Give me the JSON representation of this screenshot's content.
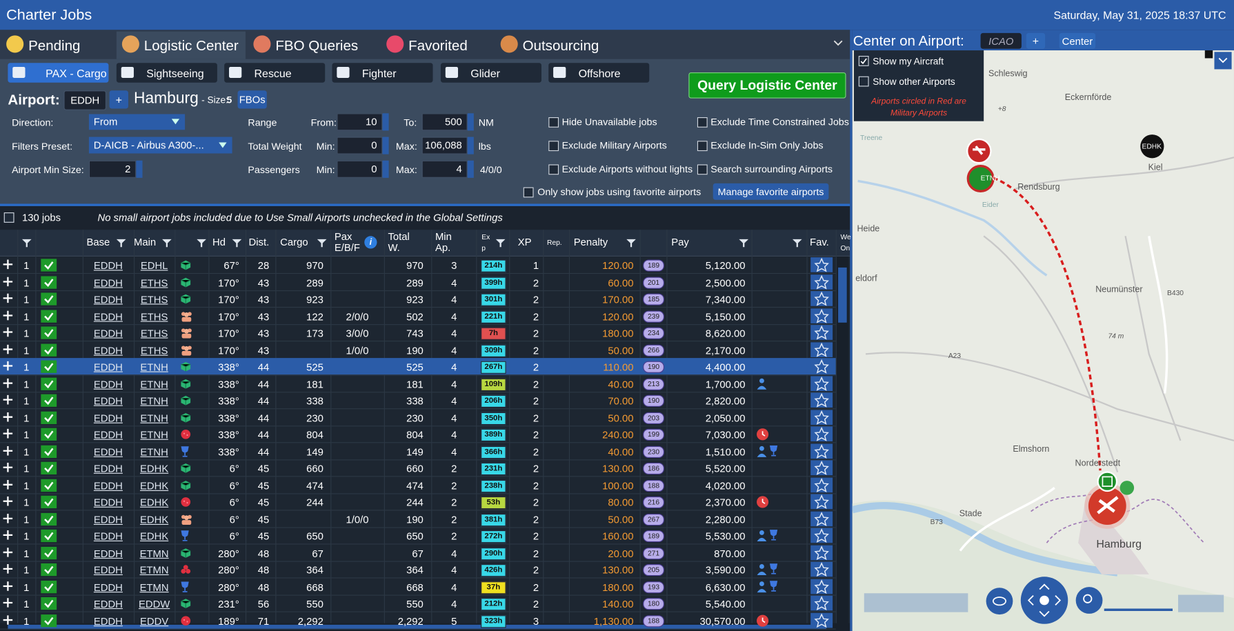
{
  "header": {
    "title": "Charter Jobs",
    "date": "Saturday, May 31, 2025 18:37 UTC"
  },
  "tabs": [
    "Pending",
    "Logistic Center",
    "FBO Queries",
    "Favorited",
    "Outsourcing"
  ],
  "categories": [
    "PAX - Cargo",
    "Sightseeing",
    "Rescue",
    "Fighter",
    "Glider",
    "Offshore"
  ],
  "query_button": "Query Logistic Center",
  "airport": {
    "label": "Airport:",
    "icao": "EDDH",
    "plus": "+",
    "name": "Hamburg",
    "size_label": "- Size:",
    "size": "5",
    "fbos": "FBOs"
  },
  "filters": {
    "direction_label": "Direction:",
    "direction": "From",
    "preset_label": "Filters Preset:",
    "preset": "D-AICB - Airbus A300-...",
    "min_size_label": "Airport Min Size:",
    "min_size": "2",
    "range_label": "Range",
    "from_label": "From:",
    "from": "10",
    "to_label": "To:",
    "to": "500",
    "range_unit": "NM",
    "weight_label": "Total Weight",
    "min_label": "Min:",
    "max_label": "Max:",
    "weight_min": "0",
    "weight_max": "106,088",
    "weight_unit": "lbs",
    "pax_label": "Passengers",
    "pax_min": "0",
    "pax_max": "4",
    "pax_summary": "4/0/0"
  },
  "checkboxes": [
    "Hide Unavailable jobs",
    "Exclude Military Airports",
    "Exclude Airports without lights",
    "Exclude Time Constrained Jobs",
    "Exclude In-Sim Only Jobs",
    "Search surrounding Airports"
  ],
  "favorites_checkbox": "Only show jobs using favorite airports",
  "manage_button": "Manage favorite airports",
  "jobs_count": "130 jobs",
  "note": "No small airport jobs included due to Use Small Airports unchecked in the Global Settings",
  "table": {
    "headers": [
      "Base",
      "Main",
      "Hd",
      "Dist.",
      "Cargo",
      "Pax\nE/B/F",
      "Total\nW.",
      "Min\nAp.",
      "Ex\np",
      "XP",
      "Rep.",
      "Penalty",
      "Pay",
      "Fav.",
      "We\nOn"
    ],
    "rows": [
      [
        "1",
        "EDDH",
        "EDHL",
        "67°",
        "28",
        "970",
        null,
        "970",
        "3",
        "214h",
        "1",
        "120.00",
        "189",
        "5,120.00"
      ],
      [
        "1",
        "EDDH",
        "ETHS",
        "170°",
        "43",
        "289",
        null,
        "289",
        "4",
        "399h",
        "2",
        "60.00",
        "201",
        "2,500.00"
      ],
      [
        "1",
        "EDDH",
        "ETHS",
        "170°",
        "43",
        "923",
        null,
        "923",
        "4",
        "301h",
        "2",
        "170.00",
        "185",
        "7,340.00"
      ],
      [
        "1",
        "EDDH",
        "ETHS",
        "170°",
        "43",
        "122",
        "2/0/0",
        "502",
        "4",
        "221h",
        "2",
        "120.00",
        "239",
        "5,150.00"
      ],
      [
        "1",
        "EDDH",
        "ETHS",
        "170°",
        "43",
        "173",
        "3/0/0",
        "743",
        "4",
        "7h",
        "2",
        "180.00",
        "234",
        "8,620.00"
      ],
      [
        "1",
        "EDDH",
        "ETHS",
        "170°",
        "43",
        null,
        "1/0/0",
        "190",
        "4",
        "309h",
        "2",
        "50.00",
        "266",
        "2,170.00"
      ],
      [
        "1",
        "EDDH",
        "ETNH",
        "338°",
        "44",
        "525",
        null,
        "525",
        "4",
        "267h",
        "2",
        "110.00",
        "190",
        "4,400.00"
      ],
      [
        "1",
        "EDDH",
        "ETNH",
        "338°",
        "44",
        "181",
        null,
        "181",
        "4",
        "109h",
        "2",
        "40.00",
        "213",
        "1,700.00"
      ],
      [
        "1",
        "EDDH",
        "ETNH",
        "338°",
        "44",
        "338",
        null,
        "338",
        "4",
        "206h",
        "2",
        "70.00",
        "190",
        "2,820.00"
      ],
      [
        "1",
        "EDDH",
        "ETNH",
        "338°",
        "44",
        "230",
        null,
        "230",
        "4",
        "350h",
        "2",
        "50.00",
        "203",
        "2,050.00"
      ],
      [
        "1",
        "EDDH",
        "ETNH",
        "338°",
        "44",
        "804",
        null,
        "804",
        "4",
        "389h",
        "2",
        "240.00",
        "199",
        "7,030.00"
      ],
      [
        "1",
        "EDDH",
        "ETNH",
        "338°",
        "44",
        "149",
        null,
        "149",
        "4",
        "366h",
        "2",
        "40.00",
        "230",
        "1,510.00"
      ],
      [
        "1",
        "EDDH",
        "EDHK",
        "6°",
        "45",
        "660",
        null,
        "660",
        "2",
        "231h",
        "2",
        "130.00",
        "186",
        "5,520.00"
      ],
      [
        "1",
        "EDDH",
        "EDHK",
        "6°",
        "45",
        "474",
        null,
        "474",
        "2",
        "238h",
        "2",
        "100.00",
        "188",
        "4,020.00"
      ],
      [
        "1",
        "EDDH",
        "EDHK",
        "6°",
        "45",
        "244",
        null,
        "244",
        "2",
        "53h",
        "2",
        "80.00",
        "216",
        "2,370.00"
      ],
      [
        "1",
        "EDDH",
        "EDHK",
        "6°",
        "45",
        null,
        "1/0/0",
        "190",
        "2",
        "381h",
        "2",
        "50.00",
        "267",
        "2,280.00"
      ],
      [
        "1",
        "EDDH",
        "EDHK",
        "6°",
        "45",
        "650",
        null,
        "650",
        "2",
        "272h",
        "2",
        "160.00",
        "189",
        "5,530.00"
      ],
      [
        "1",
        "EDDH",
        "ETMN",
        "280°",
        "48",
        "67",
        null,
        "67",
        "4",
        "290h",
        "2",
        "20.00",
        "271",
        "870.00"
      ],
      [
        "1",
        "EDDH",
        "ETMN",
        "280°",
        "48",
        "364",
        null,
        "364",
        "4",
        "426h",
        "2",
        "130.00",
        "205",
        "3,590.00"
      ],
      [
        "1",
        "EDDH",
        "ETMN",
        "280°",
        "48",
        "668",
        null,
        "668",
        "4",
        "37h",
        "2",
        "180.00",
        "193",
        "6,630.00"
      ],
      [
        "1",
        "EDDH",
        "EDDW",
        "231°",
        "56",
        "550",
        null,
        "550",
        "4",
        "212h",
        "2",
        "140.00",
        "180",
        "5,540.00"
      ],
      [
        "1",
        "EDDH",
        "EDDV",
        "189°",
        "71",
        "2,292",
        null,
        "2,292",
        "5",
        "323h",
        "3",
        "1,130.00",
        "188",
        "30,570.00"
      ]
    ]
  },
  "map": {
    "center_label": "Center on Airport:",
    "icao": "ICAO",
    "plus": "+",
    "center_button": "Center",
    "overlay": [
      "Show my Aircraft",
      "Show other Airports"
    ],
    "overlay_note": "Airports circled in Red are Military Airports",
    "labels": [
      "Schleswig",
      "Eckernförde",
      "Rendsburg",
      "Kiel",
      "Heide",
      "Neumünster",
      "Elmshorn",
      "Norderstedt",
      "Stade",
      "Hamburg",
      "Treene",
      "Eider",
      "B73",
      "A23",
      "B430",
      "74 m",
      "+8",
      "eldorf"
    ],
    "markers": [
      "ETNH",
      "EDHK"
    ]
  }
}
